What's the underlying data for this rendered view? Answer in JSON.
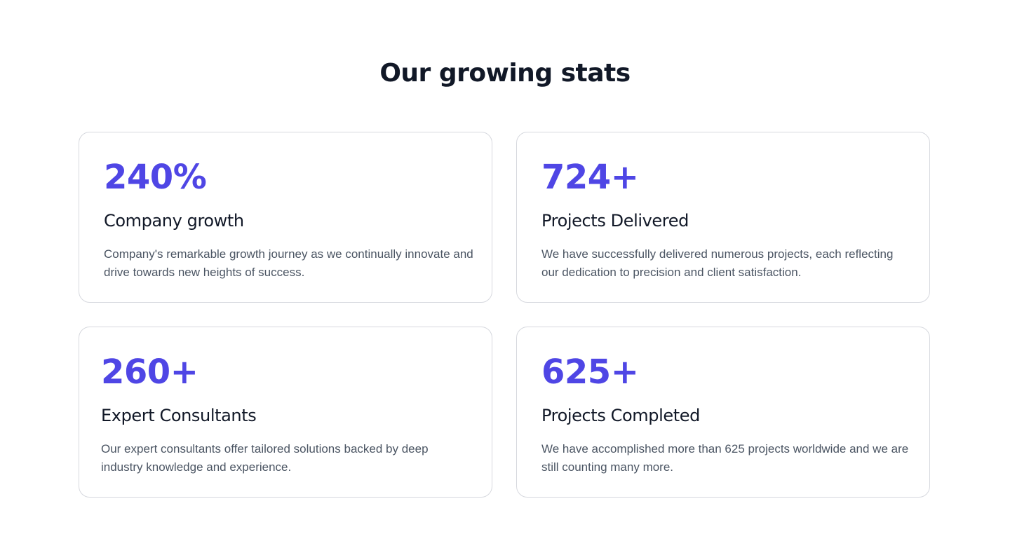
{
  "section": {
    "title": "Our growing stats"
  },
  "colors": {
    "accent": "#4f46e5",
    "heading": "#111827",
    "body_text": "#4b5563",
    "card_border": "#d6d8de"
  },
  "stats": [
    {
      "value": "240%",
      "title": "Company growth",
      "description": "Company's remarkable growth journey as we continually innovate and drive towards new heights of success."
    },
    {
      "value": "724+",
      "title": "Projects Delivered",
      "description": "We have successfully delivered numerous projects, each reflecting our dedication to precision and client satisfaction."
    },
    {
      "value": "260+",
      "title": "Expert Consultants",
      "description": "Our expert consultants offer tailored solutions backed by deep industry knowledge and experience."
    },
    {
      "value": "625+",
      "title": "Projects Completed",
      "description": "We have accomplished more than 625 projects worldwide and we are still counting many more."
    }
  ]
}
